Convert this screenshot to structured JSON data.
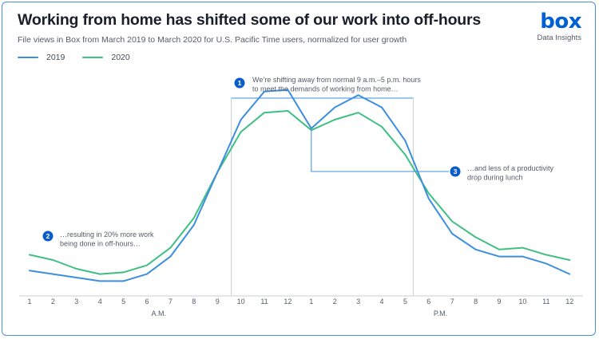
{
  "header": {
    "title": "Working from home has shifted some of our work into off-hours",
    "subtitle": "File views in Box from March 2019 to March 2020 for U.S. Pacific Time users, normalized for user growth"
  },
  "brand": {
    "logo": "box",
    "tagline": "Data Insights",
    "color": "#0061d5"
  },
  "chart_data": {
    "type": "line",
    "categories": [
      "1",
      "2",
      "3",
      "4",
      "5",
      "6",
      "7",
      "8",
      "9",
      "10",
      "11",
      "12",
      "1",
      "2",
      "3",
      "4",
      "5",
      "6",
      "7",
      "8",
      "9",
      "10",
      "11",
      "12"
    ],
    "periods": [
      {
        "label": "A.M.",
        "center_index": 5.5
      },
      {
        "label": "P.M.",
        "center_index": 17.5
      }
    ],
    "series": [
      {
        "name": "2019",
        "color": "#3b8fe0",
        "values": [
          14,
          12,
          10,
          8,
          8,
          12,
          22,
          40,
          70,
          100,
          116,
          117,
          95,
          107,
          114,
          107,
          88,
          55,
          35,
          26,
          22,
          22,
          18,
          12
        ]
      },
      {
        "name": "2020",
        "color": "#3fbf80",
        "values": [
          23,
          20,
          15,
          12,
          13,
          17,
          27,
          44,
          70,
          93,
          104,
          105,
          94,
          100,
          104,
          96,
          80,
          58,
          42,
          33,
          26,
          27,
          23,
          20
        ]
      }
    ],
    "ylim": [
      0,
      125
    ],
    "grid": false,
    "legend": "top-left",
    "highlight_range": [
      9,
      16
    ],
    "annotations": [
      {
        "number": "1",
        "lines": [
          "We’re shifting away from normal 9 a.m.–5 p.m. hours",
          "to meet the demands of working from home…"
        ]
      },
      {
        "number": "2",
        "lines": [
          "…resulting in 20% more work",
          "being done in off-hours…"
        ]
      },
      {
        "number": "3",
        "lines": [
          "…and less of a productivity",
          "drop during lunch"
        ]
      }
    ]
  },
  "colors": {
    "badge": "#0b5cc7",
    "axis": "#c9ced6",
    "frame": "#4a90d9"
  }
}
